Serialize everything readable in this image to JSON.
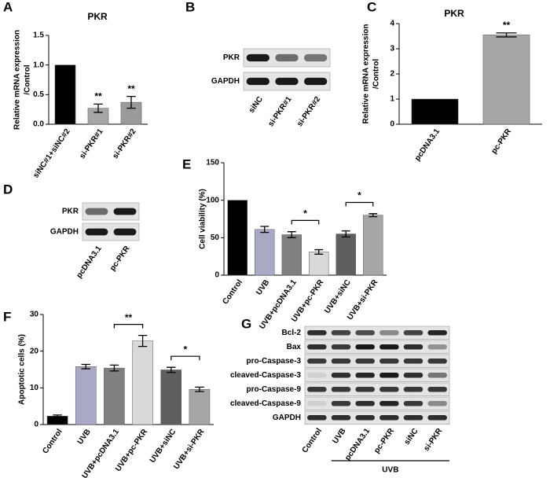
{
  "chart_data": [
    {
      "type": "bar",
      "panel": "A",
      "title": "PKR",
      "y_label": [
        "Relative mRNA expression",
        "/Control"
      ],
      "categories": [
        "siNC#1+siNC#2",
        "si-PKR#1",
        "si-PKR#2"
      ],
      "values": [
        1.0,
        0.27,
        0.37
      ],
      "errors": [
        null,
        0.07,
        0.1
      ],
      "colors": [
        "#000000",
        "#a6a6a6",
        "#9a9a9a"
      ],
      "ylim": [
        0,
        1.5
      ],
      "yticks": [
        {
          "value": 0,
          "label": "0.0"
        },
        0.5,
        {
          "value": 1,
          "label": "1.0"
        },
        1.5
      ],
      "annotations": [
        {
          "text": "**",
          "at": "si-PKR#1"
        },
        {
          "text": "**",
          "at": "si-PKR#2"
        }
      ]
    },
    {
      "type": "bar",
      "panel": "C",
      "title": "PKR",
      "y_label": [
        "Relative mRNA expression",
        "/Control"
      ],
      "categories": [
        "pcDNA3.1",
        "pc-PKR"
      ],
      "values": [
        1.0,
        3.55
      ],
      "errors": [
        null,
        0.08
      ],
      "colors": [
        "#000000",
        "#a6a6a6"
      ],
      "ylim": [
        0,
        4
      ],
      "yticks": [
        0,
        1,
        2,
        3,
        4
      ],
      "annotations": [
        {
          "text": "**",
          "at": "pc-PKR"
        }
      ]
    },
    {
      "type": "bar",
      "panel": "E",
      "y_label": [
        "Cell viability (%)"
      ],
      "categories": [
        "Control",
        "UVB",
        "UVB+pcDNA3.1",
        "UVB+pc-PKR",
        "UVB+siNC",
        "UVB+si-PKR"
      ],
      "values": [
        100,
        61,
        54,
        31,
        55,
        80
      ],
      "errors": [
        null,
        4,
        4,
        3,
        4,
        2
      ],
      "colors": [
        "#000000",
        "#a9a9c6",
        "#808080",
        "#d9d9d9",
        "#5f5f5f",
        "#a6a6a6"
      ],
      "ylim": [
        0,
        150
      ],
      "yticks": [
        0,
        50,
        100,
        150
      ],
      "brackets": [
        {
          "text": "*",
          "from": "UVB+pcDNA3.1",
          "to": "UVB+pc-PKR"
        },
        {
          "text": "*",
          "from": "UVB+siNC",
          "to": "UVB+si-PKR"
        }
      ]
    },
    {
      "type": "bar",
      "panel": "F",
      "y_label": [
        "Apoptotic cells (%)"
      ],
      "categories": [
        "Control",
        "UVB",
        "UVB+pcDNA3.1",
        "UVB+pc-PKR",
        "UVB+siNC",
        "UVB+si-PKR"
      ],
      "values": [
        2.3,
        15.8,
        15.4,
        22.8,
        14.9,
        9.6
      ],
      "errors": [
        0.3,
        0.6,
        0.8,
        1.5,
        0.7,
        0.6
      ],
      "colors": [
        "#000000",
        "#a9a9c6",
        "#808080",
        "#d9d9d9",
        "#5f5f5f",
        "#a6a6a6"
      ],
      "ylim": [
        0,
        30
      ],
      "yticks": [
        0,
        10,
        20,
        30
      ],
      "brackets": [
        {
          "text": "**",
          "from": "UVB+pcDNA3.1",
          "to": "UVB+pc-PKR"
        },
        {
          "text": "*",
          "from": "UVB+siNC",
          "to": "UVB+si-PKR"
        }
      ]
    }
  ],
  "blots": [
    {
      "panel": "B",
      "rows": [
        "PKR",
        "GAPDH"
      ],
      "lanes": [
        "siNC",
        "si-PKR#1",
        "si-PKR#2"
      ]
    },
    {
      "panel": "D",
      "rows": [
        "PKR",
        "GAPDH"
      ],
      "lanes": [
        "pcDNA3.1",
        "pc-PKR"
      ]
    },
    {
      "panel": "G",
      "rows": [
        "Bcl-2",
        "Bax",
        "pro-Caspase-3",
        "cleaved-Caspase-3",
        "pro-Caspase-9",
        "cleaved-Caspase-9",
        "GAPDH"
      ],
      "lanes": [
        "Control",
        "UVB",
        "pcDNA3.1",
        "pc-PKR",
        "siNC",
        "si-PKR"
      ],
      "group_label": "UVB"
    }
  ]
}
